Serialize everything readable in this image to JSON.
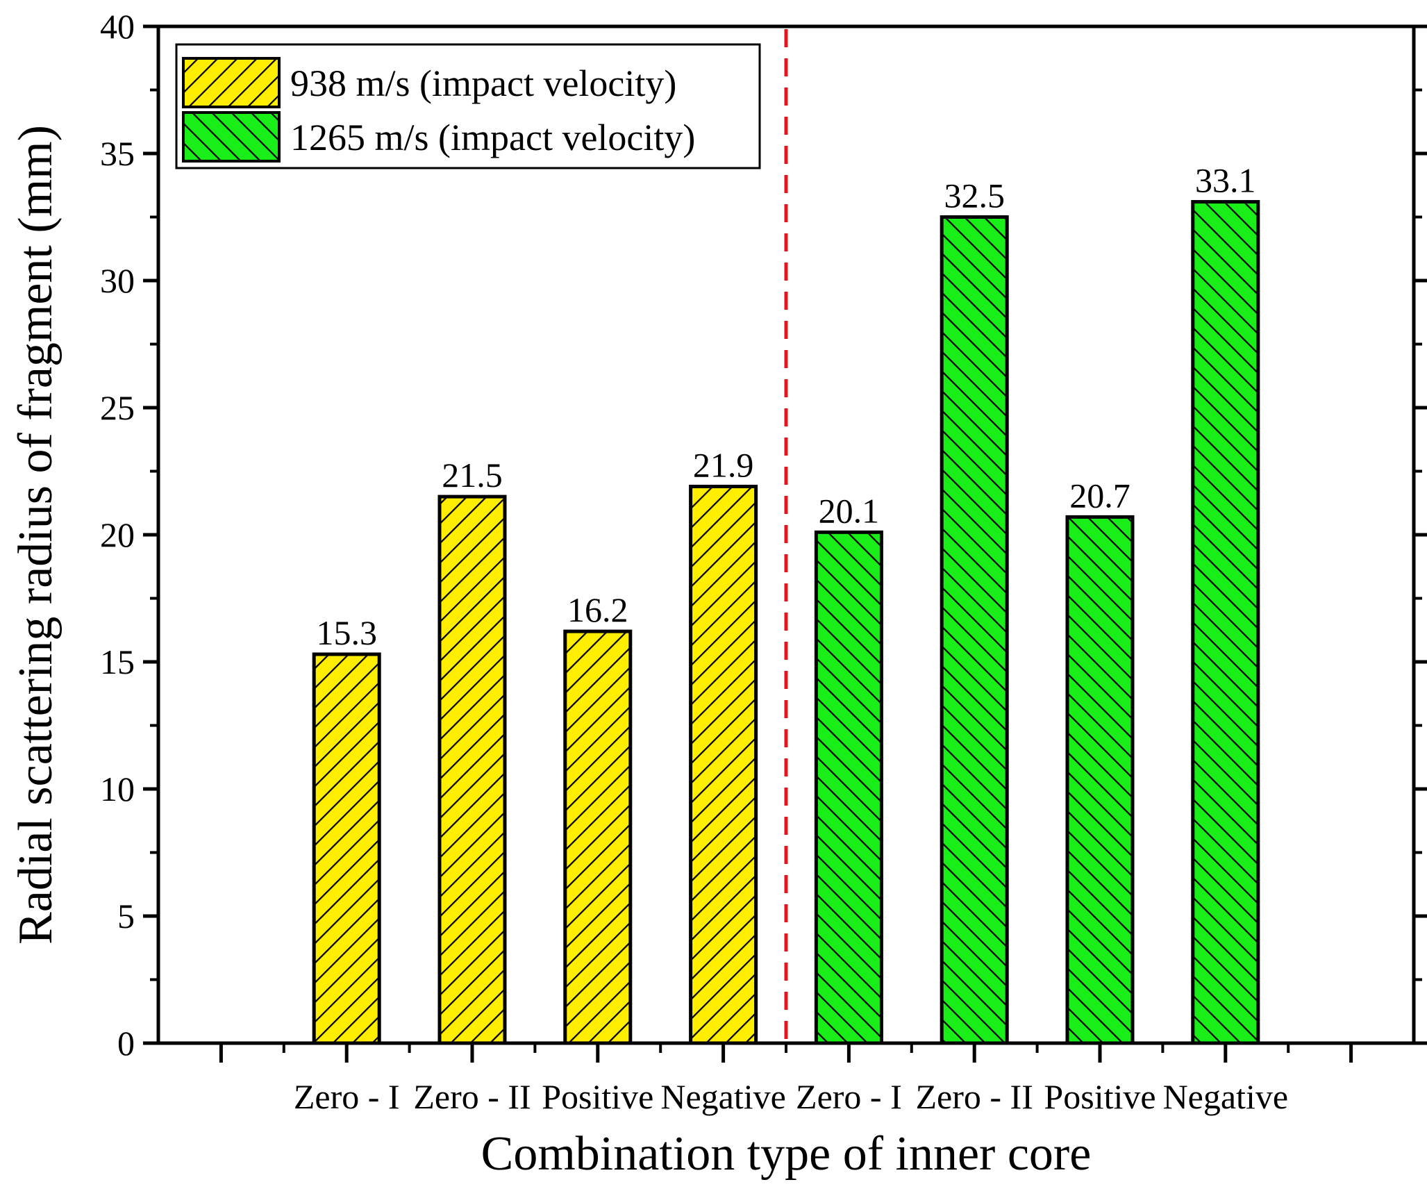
{
  "chart_data": {
    "type": "bar",
    "title": "",
    "xlabel": "Combination type of inner core",
    "ylabel": "Radial scattering radius of fragment (mm)",
    "ylim": [
      0,
      40
    ],
    "yticks": [
      0,
      5,
      10,
      15,
      20,
      25,
      30,
      35,
      40
    ],
    "tick_labels": [
      "0",
      "5",
      "10",
      "15",
      "20",
      "25",
      "30",
      "35",
      "40"
    ],
    "categories": [
      "Zero - I",
      "Zero - II",
      "Positive",
      "Negative",
      "Zero - I",
      "Zero - II",
      "Positive",
      "Negative"
    ],
    "values": [
      15.3,
      21.5,
      16.2,
      21.9,
      20.1,
      32.5,
      20.7,
      33.1
    ],
    "value_labels": [
      "15.3",
      "21.5",
      "16.2",
      "21.9",
      "20.1",
      "32.5",
      "20.7",
      "33.1"
    ],
    "series": [
      {
        "name": "938 m/s (impact velocity)",
        "color": "#ffee00",
        "hatch": "forward",
        "indices": [
          0,
          1,
          2,
          3
        ]
      },
      {
        "name": "1265 m/s (impact velocity)",
        "color": "#19ee19",
        "hatch": "backward",
        "indices": [
          4,
          5,
          6,
          7
        ]
      }
    ],
    "divider_after_category": 4,
    "divider_color": "#e8141b",
    "legend_position": "top-left",
    "grid": false
  }
}
